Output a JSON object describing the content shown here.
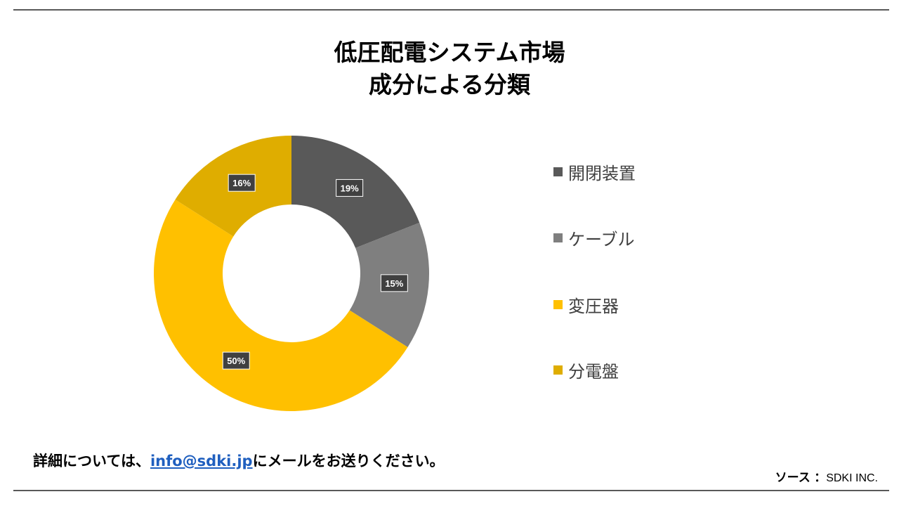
{
  "header": {
    "title_line1": "低圧配電システム市場",
    "title_line2": "成分による分類"
  },
  "chart_data": {
    "type": "pie",
    "subtype": "donut",
    "title": "低圧配電システム市場 成分による分類",
    "categories": [
      "開閉装置",
      "ケーブル",
      "変圧器",
      "分電盤"
    ],
    "values": [
      19,
      15,
      50,
      16
    ],
    "data_labels": [
      "19%",
      "15%",
      "50%",
      "16%"
    ],
    "colors": [
      "#595959",
      "#7f7f7f",
      "#ffc000",
      "#dfad00"
    ],
    "legend_position": "right"
  },
  "legend": {
    "items": [
      {
        "label": "開閉装置",
        "color": "#595959"
      },
      {
        "label": "ケーブル",
        "color": "#7f7f7f"
      },
      {
        "label": "変圧器",
        "color": "#ffc000"
      },
      {
        "label": "分電盤",
        "color": "#dfad00"
      }
    ]
  },
  "footer": {
    "note_prefix": "詳細については、",
    "email": "info@sdki.jp",
    "note_suffix": "にメールをお送りください。",
    "source_label": "ソース",
    "source_sep": "：",
    "source_value": "SDKI INC."
  }
}
